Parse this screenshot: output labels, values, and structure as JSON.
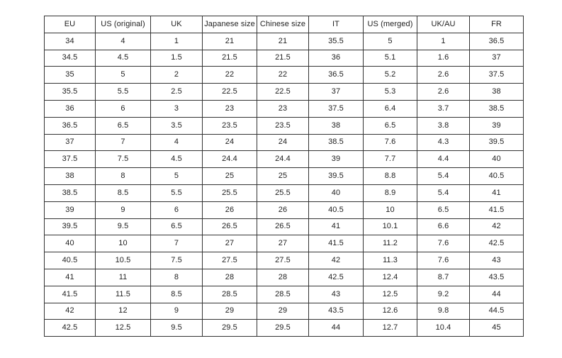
{
  "table": {
    "headers": [
      "EU",
      "US (original)",
      "UK",
      "Japanese size",
      "Chinese size",
      "IT",
      "US (merged)",
      "UK/AU",
      "FR"
    ],
    "rows": [
      [
        "34",
        "4",
        "1",
        "21",
        "21",
        "35.5",
        "5",
        "1",
        "36.5"
      ],
      [
        "34.5",
        "4.5",
        "1.5",
        "21.5",
        "21.5",
        "36",
        "5.1",
        "1.6",
        "37"
      ],
      [
        "35",
        "5",
        "2",
        "22",
        "22",
        "36.5",
        "5.2",
        "2.6",
        "37.5"
      ],
      [
        "35.5",
        "5.5",
        "2.5",
        "22.5",
        "22.5",
        "37",
        "5.3",
        "2.6",
        "38"
      ],
      [
        "36",
        "6",
        "3",
        "23",
        "23",
        "37.5",
        "6.4",
        "3.7",
        "38.5"
      ],
      [
        "36.5",
        "6.5",
        "3.5",
        "23.5",
        "23.5",
        "38",
        "6.5",
        "3.8",
        "39"
      ],
      [
        "37",
        "7",
        "4",
        "24",
        "24",
        "38.5",
        "7.6",
        "4.3",
        "39.5"
      ],
      [
        "37.5",
        "7.5",
        "4.5",
        "24.4",
        "24.4",
        "39",
        "7.7",
        "4.4",
        "40"
      ],
      [
        "38",
        "8",
        "5",
        "25",
        "25",
        "39.5",
        "8.8",
        "5.4",
        "40.5"
      ],
      [
        "38.5",
        "8.5",
        "5.5",
        "25.5",
        "25.5",
        "40",
        "8.9",
        "5.4",
        "41"
      ],
      [
        "39",
        "9",
        "6",
        "26",
        "26",
        "40.5",
        "10",
        "6.5",
        "41.5"
      ],
      [
        "39.5",
        "9.5",
        "6.5",
        "26.5",
        "26.5",
        "41",
        "10.1",
        "6.6",
        "42"
      ],
      [
        "40",
        "10",
        "7",
        "27",
        "27",
        "41.5",
        "11.2",
        "7.6",
        "42.5"
      ],
      [
        "40.5",
        "10.5",
        "7.5",
        "27.5",
        "27.5",
        "42",
        "11.3",
        "7.6",
        "43"
      ],
      [
        "41",
        "11",
        "8",
        "28",
        "28",
        "42.5",
        "12.4",
        "8.7",
        "43.5"
      ],
      [
        "41.5",
        "11.5",
        "8.5",
        "28.5",
        "28.5",
        "43",
        "12.5",
        "9.2",
        "44"
      ],
      [
        "42",
        "12",
        "9",
        "29",
        "29",
        "43.5",
        "12.6",
        "9.8",
        "44.5"
      ],
      [
        "42.5",
        "12.5",
        "9.5",
        "29.5",
        "29.5",
        "44",
        "12.7",
        "10.4",
        "45"
      ]
    ]
  },
  "colors": {
    "background": "#ffffff",
    "border": "#333333",
    "text": "#222222"
  }
}
